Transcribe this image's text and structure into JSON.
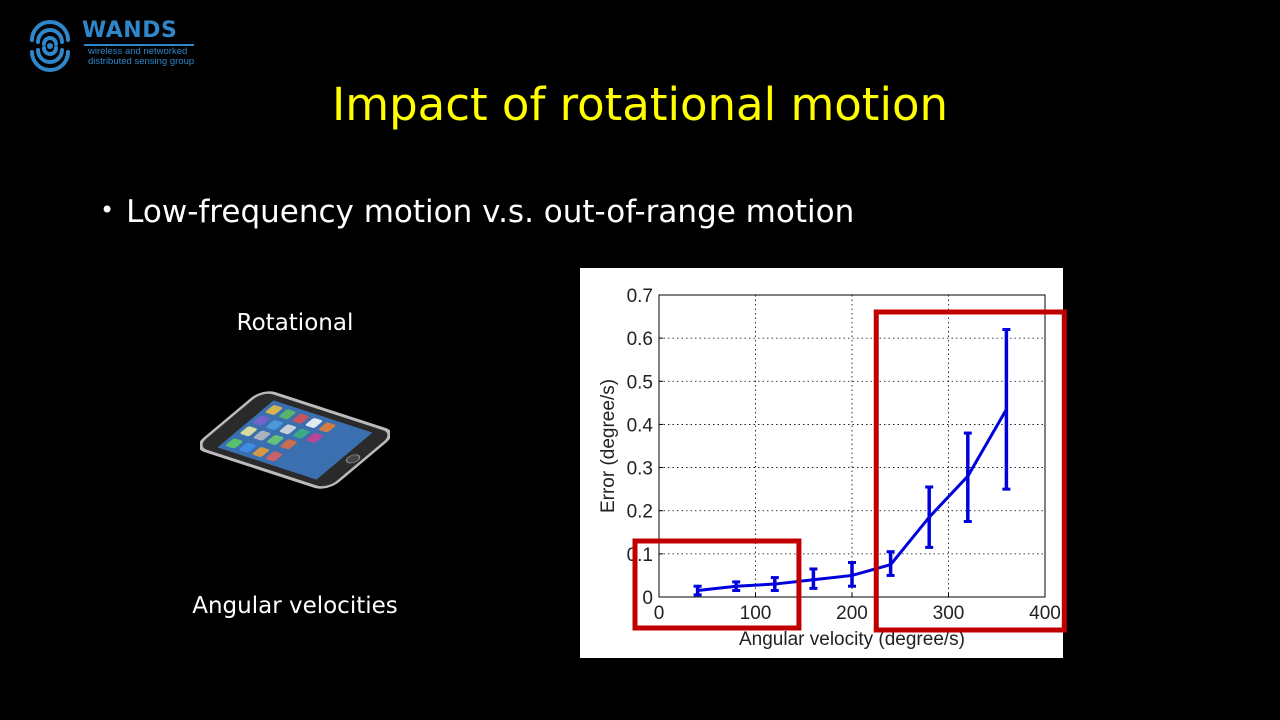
{
  "logo": {
    "brand": "WANDS",
    "tagline_1": "wireless and networked",
    "tagline_2": "distributed sensing group",
    "color": "#2f86c9"
  },
  "slide": {
    "title": "Impact of rotational motion",
    "bullet": "Low-frequency motion v.s. out-of-range motion",
    "rotational_label": "Rotational",
    "angular_label": "Angular velocities",
    "title_color": "#ffff00",
    "background": "#000000"
  },
  "phone_icon": "smartphone-icon",
  "chart_data": {
    "type": "line",
    "xlabel": "Angular velocity (degree/s)",
    "ylabel": "Error (degree/s)",
    "xlim": [
      0,
      400
    ],
    "ylim": [
      0,
      0.7
    ],
    "x_ticks": [
      "0",
      "100",
      "200",
      "300",
      "400"
    ],
    "y_ticks": [
      "0",
      "0.1",
      "0.2",
      "0.3",
      "0.4",
      "0.5",
      "0.6",
      "0.7"
    ],
    "grid": true,
    "series": [
      {
        "color": "#0000dd",
        "x": [
          40,
          80,
          120,
          160,
          200,
          240,
          280,
          320,
          360
        ],
        "y": [
          0.015,
          0.025,
          0.03,
          0.04,
          0.05,
          0.075,
          0.185,
          0.28,
          0.435
        ],
        "err_low": [
          0.005,
          0.015,
          0.015,
          0.02,
          0.025,
          0.05,
          0.115,
          0.175,
          0.25
        ],
        "err_high": [
          0.025,
          0.035,
          0.045,
          0.065,
          0.08,
          0.105,
          0.255,
          0.38,
          0.62
        ]
      }
    ],
    "highlights": [
      {
        "label": "low-frequency region",
        "x_range": [
          0,
          145
        ],
        "color": "#c00000"
      },
      {
        "label": "out-of-range region",
        "x_range": [
          250,
          420
        ],
        "color": "#c00000"
      }
    ]
  }
}
